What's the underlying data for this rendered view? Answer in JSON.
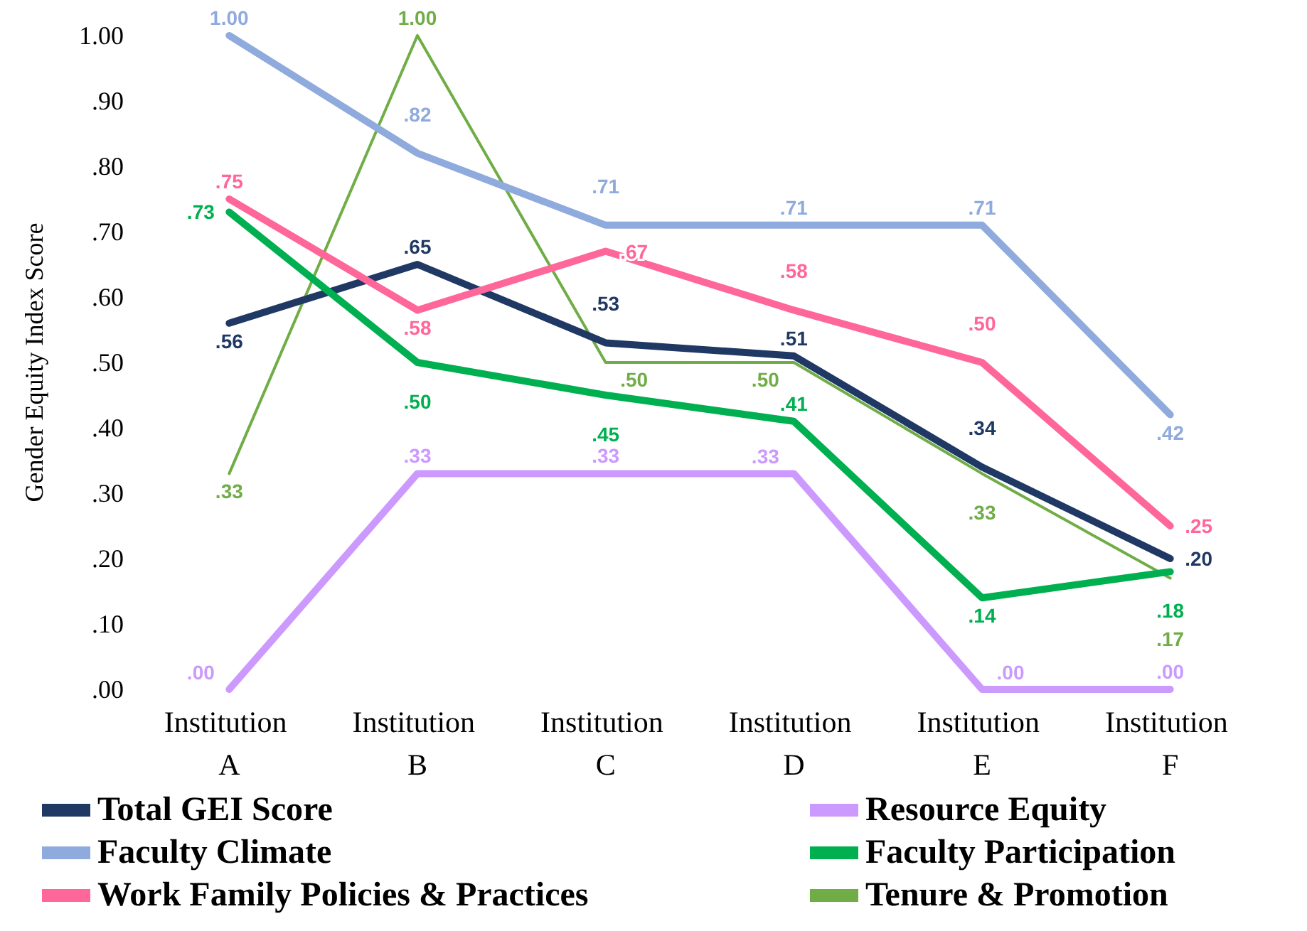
{
  "chart_data": {
    "type": "line",
    "ylabel": "Gender Equity Index Score",
    "categories": [
      "Institution A",
      "Institution B",
      "Institution C",
      "Institution D",
      "Institution E",
      "Institution F"
    ],
    "ylim": [
      0,
      1
    ],
    "yticks": [
      {
        "value": 0,
        "label": ".00"
      },
      {
        "value": 0.1,
        "label": ".10"
      },
      {
        "value": 0.2,
        "label": ".20"
      },
      {
        "value": 0.3,
        "label": ".30"
      },
      {
        "value": 0.4,
        "label": ".40"
      },
      {
        "value": 0.5,
        "label": ".50"
      },
      {
        "value": 0.6,
        "label": ".60"
      },
      {
        "value": 0.7,
        "label": ".70"
      },
      {
        "value": 0.8,
        "label": ".80"
      },
      {
        "value": 0.9,
        "label": ".90"
      },
      {
        "value": 1,
        "label": "1.00"
      }
    ],
    "grid": false,
    "legend": "bottom",
    "marker": "none",
    "series": [
      {
        "name": "Total GEI Score",
        "color": "#203864",
        "values": [
          0.56,
          0.65,
          0.53,
          0.51,
          0.34,
          0.2
        ],
        "value_labels": [
          ".56",
          ".65",
          ".53",
          ".51",
          ".34",
          ".20"
        ]
      },
      {
        "name": "Faculty Climate",
        "color": "#8faadc",
        "values": [
          1.0,
          0.82,
          0.71,
          0.71,
          0.71,
          0.42
        ],
        "value_labels": [
          "1.00",
          ".82",
          ".71",
          ".71",
          ".71",
          ".42"
        ]
      },
      {
        "name": "Work Family Policies & Practices",
        "color": "#ff6699",
        "values": [
          0.75,
          0.58,
          0.67,
          0.58,
          0.5,
          0.25
        ],
        "value_labels": [
          ".75",
          ".58",
          ".67",
          ".58",
          ".50",
          ".25"
        ]
      },
      {
        "name": "Resource Equity",
        "color": "#cc99ff",
        "values": [
          0.0,
          0.33,
          0.33,
          0.33,
          0.0,
          0.0
        ],
        "value_labels": [
          ".00",
          ".33",
          ".33",
          ".33",
          ".00",
          ".00"
        ]
      },
      {
        "name": "Faculty Participation",
        "color": "#00b050",
        "values": [
          0.73,
          0.5,
          0.45,
          0.41,
          0.14,
          0.18
        ],
        "value_labels": [
          ".73",
          ".50",
          ".45",
          ".41",
          ".14",
          ".18"
        ]
      },
      {
        "name": "Tenure & Promotion",
        "color": "#70ad47",
        "values": [
          0.33,
          1.0,
          0.5,
          0.5,
          0.33,
          0.17
        ],
        "value_labels": [
          ".33",
          "1.00",
          ".50",
          ".50",
          ".33",
          ".17"
        ]
      }
    ]
  }
}
